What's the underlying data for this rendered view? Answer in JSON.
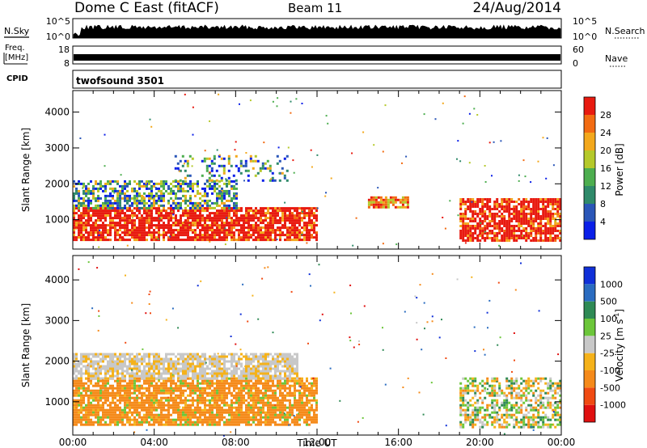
{
  "header": {
    "station": "Dome C East (fitACF)",
    "beam": "Beam 11",
    "date": "24/Aug/2014"
  },
  "chart_data": {
    "type": "heatmap",
    "x_axis": {
      "label": "Time UT",
      "ticks": [
        "00:00",
        "04:00",
        "08:00",
        "12:00",
        "16:00",
        "20:00",
        "00:00"
      ],
      "range_hours": [
        0,
        24
      ]
    },
    "y_axis": {
      "label": "Slant Range [km]",
      "ticks": [
        1000,
        2000,
        3000,
        4000
      ],
      "range_km": [
        180,
        4600
      ]
    },
    "top_strips": {
      "nsky": {
        "left_label": "N.Sky",
        "top_tick": "10^5",
        "bottom_tick": "10^0",
        "right_label": "N.Search",
        "right_top_tick": "10^5",
        "right_bottom_tick": "10^0"
      },
      "freq": {
        "left_label_1": "Freq.",
        "left_label_2": "[MHz]",
        "top_tick": "18",
        "bottom_tick": "8",
        "right_label": "Nave",
        "right_top_tick": "60",
        "right_bottom_tick": "0"
      },
      "cpid": {
        "left_label": "CPID",
        "program": "twofsound 3501"
      }
    },
    "panels": [
      {
        "name": "power",
        "colorbar_label": "Power [dB]",
        "colorbar_ticks": [
          "4",
          "8",
          "12",
          "16",
          "20",
          "24",
          "28"
        ],
        "colors": [
          "#0a1fe8",
          "#2a56b8",
          "#2f8a6a",
          "#4dae4f",
          "#b5c92a",
          "#f3a81c",
          "#f26b12",
          "#e81a10"
        ]
      },
      {
        "name": "velocity",
        "colorbar_label": "Velocity [m s",
        "colorbar_label_sup": "-1",
        "colorbar_label_end": "]",
        "colorbar_ticks": [
          "1000",
          "500",
          "100",
          "25",
          "-25",
          "-100",
          "-500",
          "-1000"
        ],
        "colors": [
          "#1030d8",
          "#2a6cc0",
          "#2f8a55",
          "#6cc63a",
          "#c8c8c8",
          "#f5b21a",
          "#f58a1a",
          "#f04a12",
          "#e01010"
        ]
      }
    ],
    "echo_regions": [
      {
        "panel": "power",
        "t": [
          0.0,
          12.0
        ],
        "r": [
          450,
          1350
        ],
        "level": "strong",
        "desc": "main band"
      },
      {
        "panel": "power",
        "t": [
          0.0,
          8.0
        ],
        "r": [
          1350,
          2100
        ],
        "level": "mixed"
      },
      {
        "panel": "power",
        "t": [
          5.0,
          10.5
        ],
        "r": [
          2100,
          2800
        ],
        "level": "weak"
      },
      {
        "panel": "power",
        "t": [
          19.0,
          24.0
        ],
        "r": [
          400,
          1600
        ],
        "level": "strong"
      },
      {
        "panel": "power",
        "t": [
          14.5,
          16.5
        ],
        "r": [
          1350,
          1650
        ],
        "level": "medium"
      },
      {
        "panel": "velocity",
        "t": [
          0.0,
          12.0
        ],
        "r": [
          450,
          1600
        ],
        "level": "negative"
      },
      {
        "panel": "velocity",
        "t": [
          0.0,
          11.0
        ],
        "r": [
          1600,
          2200
        ],
        "level": "near-zero"
      },
      {
        "panel": "velocity",
        "t": [
          19.0,
          24.0
        ],
        "r": [
          400,
          1600
        ],
        "level": "mixed"
      }
    ]
  }
}
